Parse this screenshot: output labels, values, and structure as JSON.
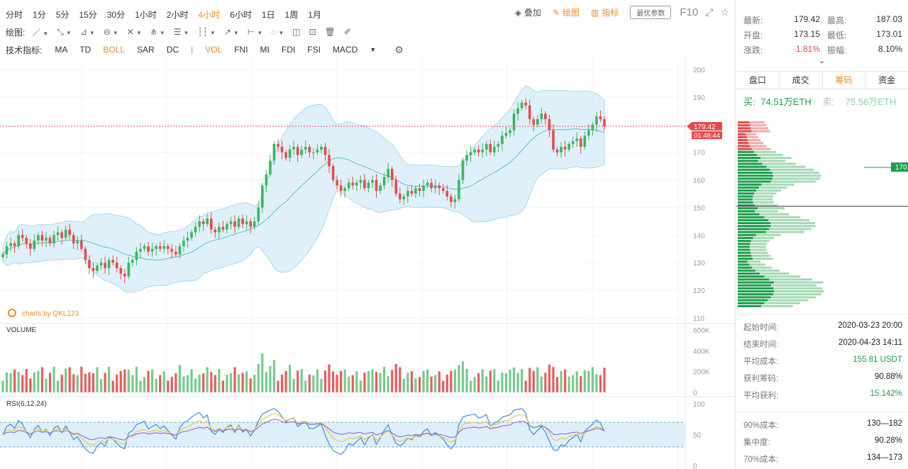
{
  "toolbar": {
    "timeframes": [
      "分时",
      "1分",
      "5分",
      "15分",
      "30分",
      "1小时",
      "2小时",
      "4小时",
      "6小时",
      "1日",
      "1周",
      "1月"
    ],
    "active_timeframe": "4小时",
    "overlay_label": "叠加",
    "draw_label": "绘图",
    "indicator_label": "指标",
    "best_params_label": "最优参数",
    "f10_label": "F10"
  },
  "drawing": {
    "label": "绘图:"
  },
  "indicators": {
    "label": "技术指标:",
    "main": [
      "MA",
      "TD",
      "BOLL",
      "SAR",
      "DC"
    ],
    "active_main": "BOLL",
    "sub": [
      "VOL",
      "FNI",
      "MI",
      "FDI",
      "FSI",
      "MACD"
    ],
    "active_sub": "VOL"
  },
  "chart": {
    "watermark": "charts by QKL123",
    "volume_label": "VOLUME",
    "rsi_label": "RSI(6,12,24)",
    "price_ticks": [
      "200",
      "190",
      "180",
      "170",
      "160",
      "150",
      "140",
      "130",
      "120",
      "110"
    ],
    "volume_ticks": [
      "600K",
      "400K",
      "200K",
      "0"
    ],
    "rsi_ticks": [
      "100",
      "50",
      "0"
    ],
    "last_price_tag": "179.42",
    "countdown_tag": "01:48:44",
    "colors": {
      "up": "#3bb55e",
      "down": "#e84a4a",
      "band": "#d6ebf8",
      "mid": "#56c2c6"
    }
  },
  "chart_data": {
    "type": "candlestick",
    "ylim": [
      110,
      200
    ],
    "last_price": 179.42,
    "closes": [
      133,
      136,
      137,
      136,
      140,
      139,
      137,
      135,
      138,
      140,
      138,
      139,
      137,
      140,
      141,
      139,
      142,
      140,
      137,
      138,
      135,
      131,
      128,
      127,
      129,
      130,
      128,
      131,
      130,
      128,
      126,
      125,
      130,
      131,
      134,
      135,
      136,
      134,
      135,
      136,
      135,
      136,
      135,
      134,
      133,
      136,
      138,
      139,
      141,
      143,
      145,
      144,
      146,
      142,
      141,
      143,
      142,
      144,
      145,
      143,
      146,
      144,
      145,
      143,
      145,
      150,
      158,
      162,
      167,
      173,
      172,
      170,
      168,
      171,
      172,
      169,
      171,
      172,
      170,
      170,
      171,
      172,
      169,
      165,
      160,
      158,
      156,
      157,
      159,
      158,
      159,
      160,
      157,
      159,
      160,
      156,
      158,
      161,
      164,
      160,
      155,
      153,
      154,
      156,
      155,
      157,
      156,
      158,
      159,
      157,
      158,
      157,
      156,
      154,
      152,
      153,
      160,
      167,
      169,
      170,
      171,
      170,
      171,
      173,
      170,
      172,
      173,
      176,
      177,
      178,
      184,
      186,
      188,
      187,
      182,
      180,
      182,
      184,
      182,
      178,
      171,
      170,
      172,
      171,
      173,
      174,
      175,
      172,
      176,
      178,
      180,
      183,
      182,
      179.42
    ],
    "vol_ticks_k": [
      600,
      400,
      200,
      0
    ],
    "rsi_range": [
      0,
      100
    ]
  },
  "panel": {
    "latest_label": "最新:",
    "latest": "179.42",
    "high_label": "最高:",
    "high": "187.03",
    "open_label": "开盘:",
    "open": "173.15",
    "low_label": "最低:",
    "low": "173.01",
    "change_label": "涨跌:",
    "change": "-1.81%",
    "amp_label": "振幅:",
    "amp": "8.10%",
    "tabs": [
      "盘口",
      "成交",
      "筹码",
      "资金"
    ],
    "active_tab": "筹码",
    "buy_label": "买:",
    "buy_value": "74.51万ETH",
    "sell_label": "卖:",
    "sell_value": "75.56万ETH",
    "dist_price_tag": "170",
    "stats": [
      {
        "k": "起始时间:",
        "v": "2020-03-23 20:00",
        "green": false
      },
      {
        "k": "结束时间:",
        "v": "2020-04-23 14:11",
        "green": false
      },
      {
        "k": "平均成本:",
        "v": "155.81 USDT",
        "green": true
      },
      {
        "k": "获利筹码:",
        "v": "90.88%",
        "green": false
      },
      {
        "k": "平均获利:",
        "v": "15.142%",
        "green": true
      }
    ],
    "stats2": [
      {
        "k": "90%成本:",
        "v": "130—182"
      },
      {
        "k": "集中度:",
        "v": "90.28%"
      },
      {
        "k": "70%成本:",
        "v": "134—173"
      }
    ]
  }
}
